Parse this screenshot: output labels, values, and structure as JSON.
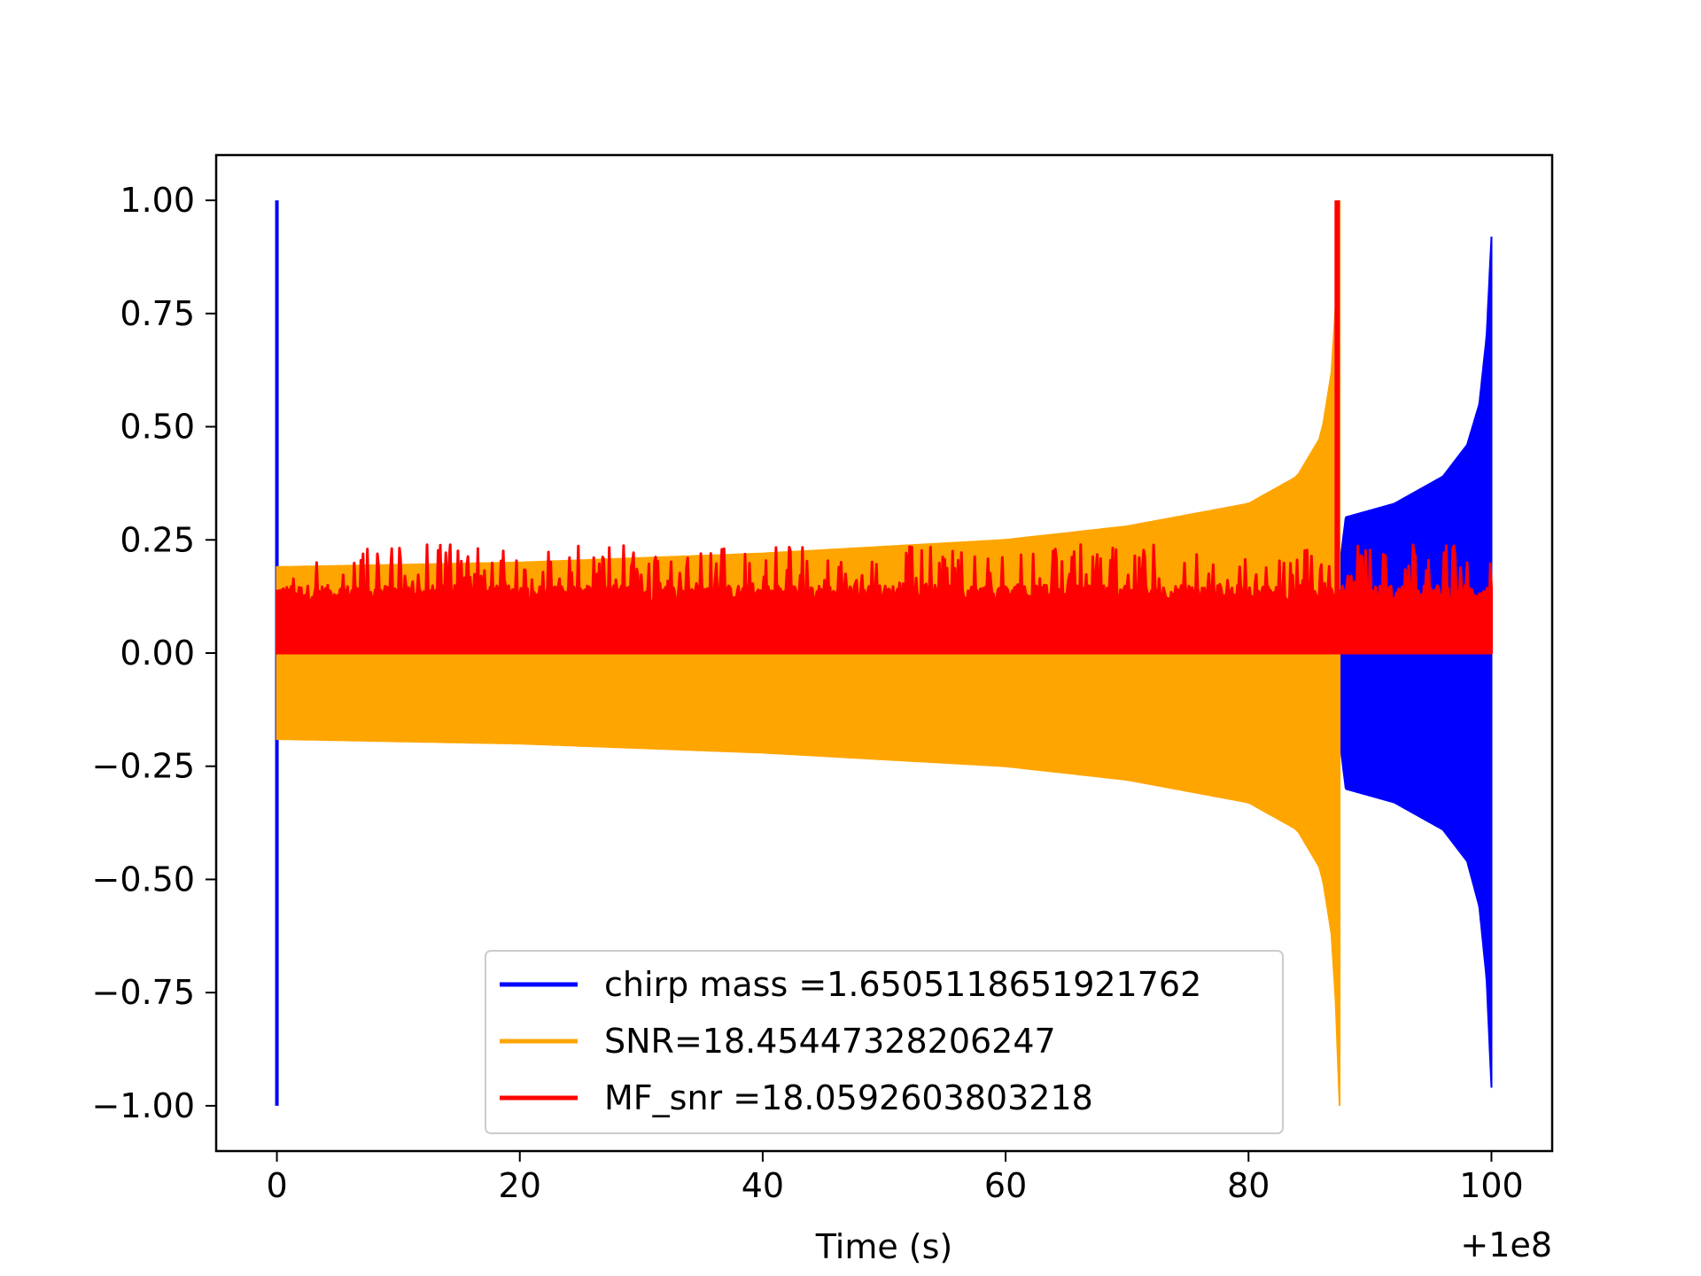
{
  "chart_data": {
    "type": "line",
    "title": "",
    "xlabel": "Time (s)",
    "ylabel": "",
    "x_offset_label": "+1e8",
    "xlim": [
      -5,
      105
    ],
    "ylim": [
      -1.1,
      1.1
    ],
    "xticks": [
      0,
      20,
      40,
      60,
      80,
      100
    ],
    "xtick_labels": [
      "0",
      "20",
      "40",
      "60",
      "80",
      "100"
    ],
    "yticks": [
      1.0,
      0.75,
      0.5,
      0.25,
      0.0,
      -0.25,
      -0.5,
      -0.75,
      -1.0
    ],
    "ytick_labels": [
      "1.00",
      "0.75",
      "0.50",
      "0.25",
      "0.00",
      "−0.25",
      "−0.50",
      "−0.75",
      "−1.00"
    ],
    "grid": false,
    "legend_position": "lower-center",
    "series": [
      {
        "name": "chirp mass =1.6505118651921762",
        "color": "#0000ff",
        "description": "chirp waveform envelope",
        "x": [
          0,
          87.5,
          88,
          92,
          96,
          98,
          99,
          99.6,
          100
        ],
        "upper": [
          0.19,
          0.19,
          0.3,
          0.33,
          0.39,
          0.46,
          0.55,
          0.7,
          0.92
        ],
        "lower": [
          -0.19,
          -0.19,
          -0.3,
          -0.33,
          -0.39,
          -0.46,
          -0.56,
          -0.72,
          -0.96
        ],
        "spike": {
          "x": 0,
          "ymax": 1.0,
          "ymin": -1.0
        }
      },
      {
        "name": "SNR=18.45447328206247",
        "color": "#ffa500",
        "x": [
          0,
          20,
          40,
          60,
          70,
          80,
          84,
          86,
          87,
          87.5
        ],
        "upper": [
          0.19,
          0.2,
          0.22,
          0.25,
          0.28,
          0.33,
          0.39,
          0.48,
          0.65,
          1.0
        ],
        "lower": [
          -0.19,
          -0.2,
          -0.22,
          -0.25,
          -0.28,
          -0.33,
          -0.39,
          -0.48,
          -0.65,
          -1.0
        ]
      },
      {
        "name": "MF_snr =18.0592603803218",
        "color": "#ff0000",
        "x_range": [
          0,
          100
        ],
        "baseline_max": 0.15,
        "noise_peaks_max": 0.24,
        "spike": {
          "x": 87.3,
          "ymax": 1.0,
          "ymin": 0.0
        }
      }
    ]
  }
}
